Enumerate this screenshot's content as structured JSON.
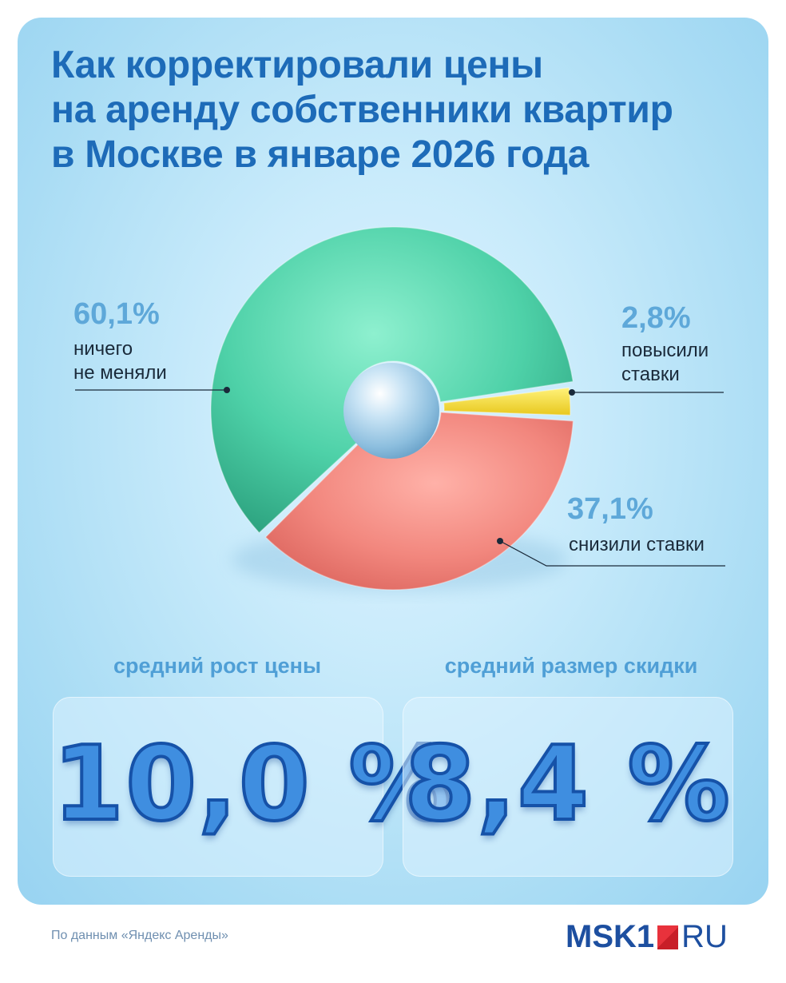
{
  "title": {
    "line1": "Как корректировали цены",
    "line2": "на аренду собственники квартир",
    "line3": "в Москве в январе 2026 года"
  },
  "chart_data": {
    "type": "pie",
    "title": "Как корректировали цены на аренду собственники квартир в Москве в январе 2026 года",
    "slices": [
      {
        "label": "ничего не меняли",
        "value": 60.1,
        "value_text": "60,1%",
        "label_lines": [
          "ничего",
          "не меняли"
        ],
        "color": "#4ed1a8"
      },
      {
        "label": "повысили ставки",
        "value": 2.8,
        "value_text": "2,8%",
        "label_lines": [
          "повысили",
          "ставки"
        ],
        "color": "#f2e03a"
      },
      {
        "label": "снизили ставки",
        "value": 37.1,
        "value_text": "37,1%",
        "label_lines": [
          "снизили ставки"
        ],
        "color": "#f2877e"
      }
    ],
    "center_color": "#9ccbe8"
  },
  "stats": [
    {
      "label": "средний рост цены",
      "value": "10,0 %"
    },
    {
      "label": "средний размер скидки",
      "value": "8,4 %"
    }
  ],
  "source": "По данным «Яндекс Аренды»",
  "logo": {
    "main": "MSK1",
    "tld": "RU"
  },
  "colors": {
    "title": "#1d6bb8",
    "accent": "#5ea8d9",
    "balloon": "#3f8ee0",
    "logo": "#1d4fa0",
    "logo_red": "#e8323c"
  }
}
